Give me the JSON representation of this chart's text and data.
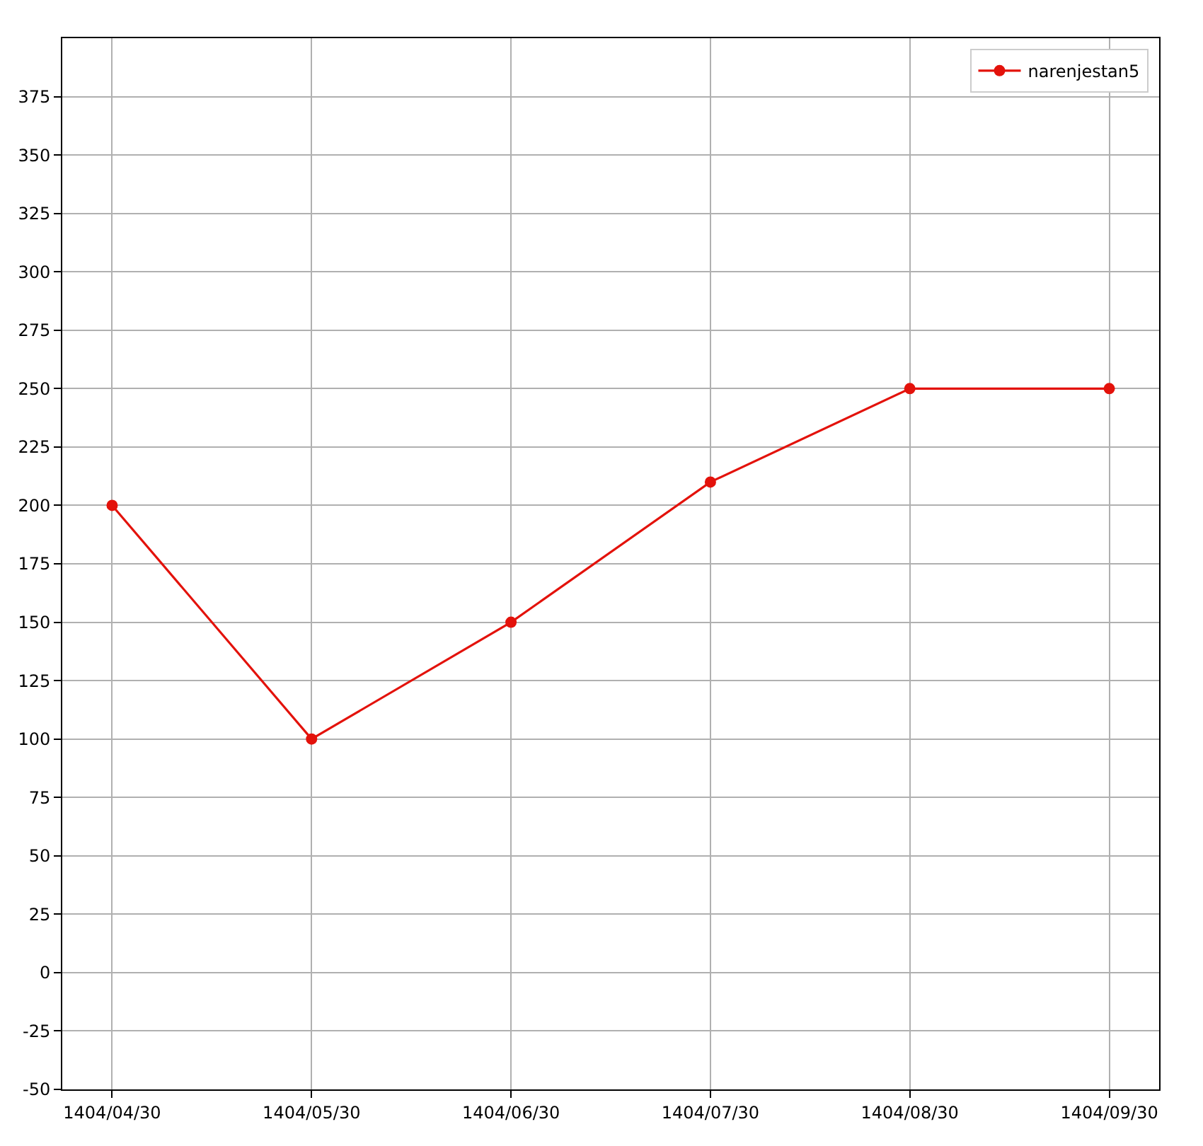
{
  "chart_data": {
    "type": "line",
    "categories": [
      "1404/04/30",
      "1404/05/30",
      "1404/06/30",
      "1404/07/30",
      "1404/08/30",
      "1404/09/30"
    ],
    "series": [
      {
        "name": "narenjestan5",
        "color": "#e3120b",
        "values": [
          200,
          100,
          150,
          210,
          250,
          250
        ]
      }
    ],
    "ylim": [
      -50,
      400
    ],
    "yticks": [
      -50,
      -25,
      0,
      25,
      50,
      75,
      100,
      125,
      150,
      175,
      200,
      225,
      250,
      275,
      300,
      325,
      350,
      375
    ],
    "grid": true,
    "legend": "top right",
    "marker": "circle",
    "line_style": "solid"
  }
}
